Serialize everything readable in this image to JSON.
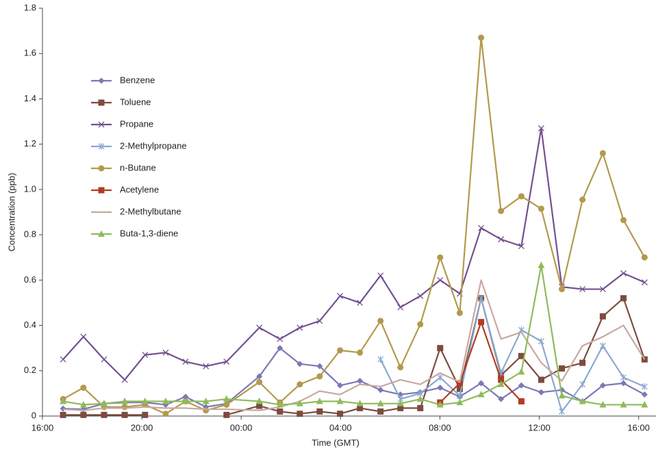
{
  "chart_data": {
    "type": "line",
    "xlabel": "Time (GMT)",
    "ylabel": "Concentration (ppb)",
    "x": [
      0.83,
      1.65,
      2.48,
      3.31,
      4.13,
      4.96,
      5.76,
      6.58,
      7.41,
      8.73,
      9.56,
      10.36,
      11.16,
      11.98,
      12.78,
      13.61,
      14.41,
      15.21,
      16.01,
      16.8,
      17.66,
      18.46,
      19.28,
      20.08,
      20.91,
      21.74,
      22.56,
      23.39,
      24.24
    ],
    "xlim": [
      0,
      24.7
    ],
    "xticks": [
      {
        "value": 0,
        "label": "16:00"
      },
      {
        "value": 4,
        "label": "20:00"
      },
      {
        "value": 8,
        "label": "00:00"
      },
      {
        "value": 12,
        "label": "04:00"
      },
      {
        "value": 16,
        "label": "08:00"
      },
      {
        "value": 20,
        "label": "12:00"
      },
      {
        "value": 24,
        "label": "16:00"
      }
    ],
    "ylim": [
      0,
      1.8
    ],
    "yticks": [
      0,
      0.2,
      0.4,
      0.6,
      0.8,
      {
        "value": 1,
        "label": "1.0"
      },
      1.2,
      1.4,
      1.6,
      1.8
    ],
    "grid": false,
    "legend": "upper left",
    "series": [
      {
        "name": "Benzene",
        "color": "#7b78b6",
        "marker": "diamond",
        "values": [
          0.033,
          0.03,
          0.055,
          0.06,
          0.06,
          0.05,
          0.085,
          0.04,
          0.055,
          0.175,
          0.3,
          0.23,
          0.22,
          0.135,
          0.155,
          0.115,
          0.095,
          0.105,
          0.125,
          0.085,
          0.145,
          0.075,
          0.135,
          0.105,
          0.115,
          0.065,
          0.135,
          0.145,
          0.095
        ]
      },
      {
        "name": "Toluene",
        "color": "#7d4b3e",
        "marker": "square",
        "values": [
          0.005,
          0.005,
          0.005,
          0.005,
          0.005,
          null,
          null,
          null,
          0.005,
          0.045,
          0.02,
          0.01,
          0.02,
          0.01,
          0.035,
          0.02,
          0.035,
          0.035,
          0.3,
          0.12,
          0.52,
          0.18,
          0.265,
          0.16,
          0.21,
          0.235,
          0.44,
          0.52,
          0.25
        ]
      },
      {
        "name": "Propane",
        "color": "#72508f",
        "marker": "x",
        "values": [
          0.25,
          0.35,
          0.25,
          0.16,
          0.27,
          0.28,
          0.24,
          0.22,
          0.24,
          0.39,
          0.34,
          0.39,
          0.42,
          0.53,
          0.5,
          0.62,
          0.48,
          0.53,
          0.6,
          0.54,
          0.83,
          0.78,
          0.75,
          1.27,
          0.57,
          0.56,
          0.56,
          0.63,
          0.59
        ]
      },
      {
        "name": "2-Methylpropane",
        "color": "#8aa8d0",
        "marker": "star",
        "values": [
          null,
          null,
          null,
          null,
          null,
          null,
          null,
          null,
          null,
          null,
          null,
          null,
          null,
          null,
          null,
          0.25,
          0.075,
          0.1,
          0.17,
          0.09,
          0.52,
          0.19,
          0.38,
          0.33,
          0.02,
          0.14,
          0.31,
          0.17,
          0.13
        ]
      },
      {
        "name": "n-Butane",
        "color": "#b3994c",
        "marker": "circle",
        "values": [
          0.075,
          0.125,
          0.04,
          0.04,
          0.05,
          0.01,
          0.065,
          0.025,
          0.05,
          0.15,
          0.06,
          0.14,
          0.175,
          0.29,
          0.28,
          0.42,
          0.215,
          0.405,
          0.7,
          0.455,
          1.67,
          0.905,
          0.97,
          0.915,
          0.56,
          0.955,
          1.16,
          0.865,
          0.7
        ]
      },
      {
        "name": "Acetylene",
        "color": "#b23c22",
        "marker": "square",
        "values": [
          null,
          null,
          null,
          null,
          null,
          null,
          null,
          null,
          null,
          null,
          null,
          null,
          null,
          null,
          null,
          null,
          null,
          null,
          0.06,
          0.145,
          0.415,
          0.16,
          0.065,
          null,
          null,
          null,
          null,
          null,
          null
        ]
      },
      {
        "name": "2-Methylbutane",
        "color": "#c6a9a0",
        "marker": "none",
        "values": [
          0.03,
          0.025,
          0.035,
          0.035,
          0.04,
          0.035,
          0.035,
          0.03,
          0.03,
          0.025,
          0.04,
          0.065,
          0.11,
          0.095,
          0.14,
          0.13,
          0.16,
          0.14,
          0.19,
          0.15,
          0.6,
          0.34,
          0.37,
          0.235,
          0.155,
          0.31,
          0.35,
          0.4,
          0.25
        ]
      },
      {
        "name": "Buta-1,3-diene",
        "color": "#8fbb5b",
        "marker": "triangle",
        "values": [
          0.065,
          0.05,
          0.055,
          0.065,
          0.065,
          0.065,
          0.065,
          0.065,
          0.075,
          0.065,
          0.05,
          0.055,
          0.065,
          0.065,
          0.055,
          0.055,
          0.055,
          0.075,
          0.05,
          0.06,
          0.095,
          0.14,
          0.195,
          0.665,
          0.09,
          0.065,
          0.05,
          0.05,
          0.05
        ]
      }
    ]
  }
}
